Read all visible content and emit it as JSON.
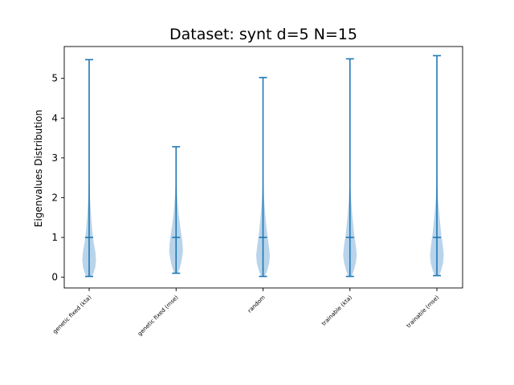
{
  "chart_data": {
    "type": "violin",
    "title": "Dataset: synt d=5 N=15",
    "xlabel": "",
    "ylabel": "Eigenvalues Distribution",
    "ylim": [
      -0.27,
      5.8
    ],
    "yticks": [
      0,
      1,
      2,
      3,
      4,
      5
    ],
    "grid": false,
    "color": "#1f77b4",
    "body_color": "#b9d4ea",
    "categories": [
      "genetic fixed (kta)",
      "genetic fixed (mse)",
      "random",
      "trainable (kta)",
      "trainable (mse)"
    ],
    "series": [
      {
        "min": 0.02,
        "median": 1.0,
        "max": 5.47,
        "density": [
          [
            0.02,
            0.35
          ],
          [
            0.1,
            0.6
          ],
          [
            0.25,
            0.85
          ],
          [
            0.45,
            0.95
          ],
          [
            0.65,
            0.85
          ],
          [
            0.9,
            0.6
          ],
          [
            1.2,
            0.42
          ],
          [
            1.5,
            0.28
          ],
          [
            1.8,
            0.18
          ],
          [
            2.1,
            0.1
          ],
          [
            2.5,
            0.04
          ],
          [
            3.2,
            0.02
          ],
          [
            5.47,
            0.01
          ]
        ]
      },
      {
        "min": 0.1,
        "median": 1.0,
        "max": 3.28,
        "density": [
          [
            0.1,
            0.25
          ],
          [
            0.25,
            0.55
          ],
          [
            0.45,
            0.8
          ],
          [
            0.65,
            0.95
          ],
          [
            0.85,
            0.9
          ],
          [
            1.05,
            0.75
          ],
          [
            1.3,
            0.55
          ],
          [
            1.55,
            0.38
          ],
          [
            1.8,
            0.25
          ],
          [
            2.1,
            0.13
          ],
          [
            2.4,
            0.06
          ],
          [
            2.8,
            0.02
          ],
          [
            3.28,
            0.01
          ]
        ]
      },
      {
        "min": 0.02,
        "median": 1.0,
        "max": 5.02,
        "density": [
          [
            0.02,
            0.25
          ],
          [
            0.15,
            0.55
          ],
          [
            0.35,
            0.85
          ],
          [
            0.55,
            0.95
          ],
          [
            0.8,
            0.8
          ],
          [
            1.05,
            0.6
          ],
          [
            1.35,
            0.42
          ],
          [
            1.65,
            0.28
          ],
          [
            1.95,
            0.15
          ],
          [
            2.3,
            0.07
          ],
          [
            2.8,
            0.03
          ],
          [
            3.6,
            0.015
          ],
          [
            5.02,
            0.01
          ]
        ]
      },
      {
        "min": 0.02,
        "median": 1.0,
        "max": 5.49,
        "density": [
          [
            0.02,
            0.25
          ],
          [
            0.15,
            0.5
          ],
          [
            0.35,
            0.8
          ],
          [
            0.55,
            0.95
          ],
          [
            0.8,
            0.82
          ],
          [
            1.05,
            0.6
          ],
          [
            1.35,
            0.43
          ],
          [
            1.65,
            0.28
          ],
          [
            1.95,
            0.16
          ],
          [
            2.3,
            0.08
          ],
          [
            2.8,
            0.03
          ],
          [
            3.6,
            0.015
          ],
          [
            5.49,
            0.01
          ]
        ]
      },
      {
        "min": 0.04,
        "median": 1.0,
        "max": 5.57,
        "density": [
          [
            0.04,
            0.3
          ],
          [
            0.15,
            0.55
          ],
          [
            0.35,
            0.85
          ],
          [
            0.55,
            0.95
          ],
          [
            0.8,
            0.82
          ],
          [
            1.05,
            0.62
          ],
          [
            1.35,
            0.45
          ],
          [
            1.65,
            0.3
          ],
          [
            1.95,
            0.16
          ],
          [
            2.3,
            0.07
          ],
          [
            2.8,
            0.03
          ],
          [
            3.6,
            0.015
          ],
          [
            5.57,
            0.01
          ]
        ]
      }
    ]
  }
}
